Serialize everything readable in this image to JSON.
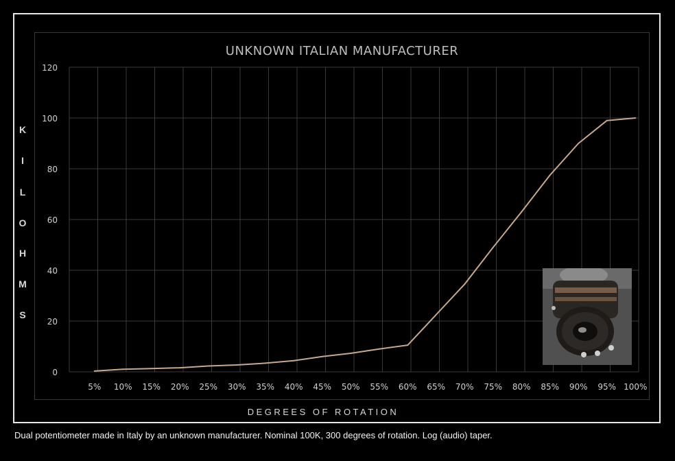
{
  "caption": "Dual potentiometer made in Italy by an unknown manufacturer. Nominal 100K, 300 degrees of rotation. Log (audio) taper.",
  "chart_data": {
    "type": "line",
    "title": "UNKNOWN ITALIAN MANUFACTURER",
    "ylabel": "KILOHMS",
    "ylabel_letters": [
      "K",
      "I",
      "L",
      "O",
      "H",
      "M",
      "S"
    ],
    "xlabel": "DEGREES OF ROTATION",
    "categories": [
      "5%",
      "10%",
      "15%",
      "20%",
      "25%",
      "30%",
      "35%",
      "40%",
      "45%",
      "50%",
      "55%",
      "60%",
      "65%",
      "70%",
      "75%",
      "80%",
      "85%",
      "90%",
      "95%",
      "100%"
    ],
    "values": [
      0.3,
      1,
      1.3,
      1.6,
      2.3,
      2.7,
      3.4,
      4.4,
      6,
      7.3,
      9,
      10.5,
      22.5,
      34.5,
      49,
      63,
      77.5,
      90,
      99,
      100
    ],
    "yticks": [
      0,
      20,
      40,
      60,
      80,
      100,
      120
    ],
    "ylim": [
      0,
      120
    ],
    "grid": true,
    "line_color": "#c8a88e",
    "background": "#000000",
    "grid_color": "#3a3a3a"
  }
}
